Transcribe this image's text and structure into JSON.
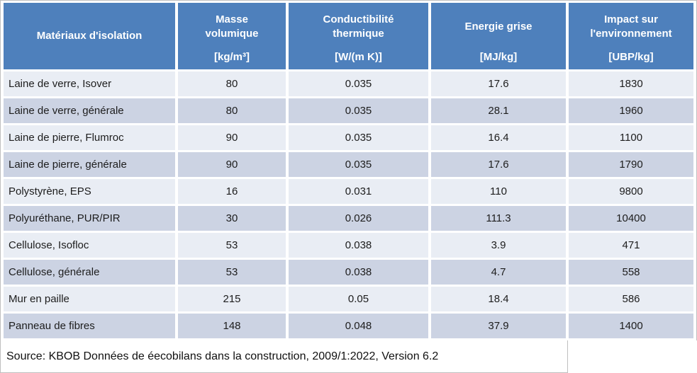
{
  "chart_data": {
    "type": "table",
    "columns": [
      "Matériaux d'isolation",
      "Masse volumique [kg/m³]",
      "Conductibilité thermique [W/(m K)]",
      "Energie grise [MJ/kg]",
      "Impact sur l'environnement [UBP/kg]"
    ],
    "rows": [
      [
        "Laine de verre, Isover",
        "80",
        "0.035",
        "17.6",
        "1830"
      ],
      [
        "Laine de verre, générale",
        "80",
        "0.035",
        "28.1",
        "1960"
      ],
      [
        "Laine de pierre, Flumroc",
        "90",
        "0.035",
        "16.4",
        "1100"
      ],
      [
        "Laine de pierre,  générale",
        "90",
        "0.035",
        "17.6",
        "1790"
      ],
      [
        "Polystyrène, EPS",
        "16",
        "0.031",
        "110",
        "9800"
      ],
      [
        "Polyuréthane, PUR/PIR",
        "30",
        "0.026",
        "111.3",
        "10400"
      ],
      [
        "Cellulose, Isofloc",
        "53",
        "0.038",
        "3.9",
        "471"
      ],
      [
        "Cellulose, générale",
        "53",
        "0.038",
        "4.7",
        "558"
      ],
      [
        "Mur en paille",
        "215",
        "0.05",
        "18.4",
        "586"
      ],
      [
        "Panneau de fibres",
        "148",
        "0.048",
        "37.9",
        "1400"
      ]
    ],
    "source": "Source: KBOB Données de éecobilans dans la construction, 2009/1:2022, Version 6.2",
    "layout_hints": {
      "banded_rows": true,
      "header_position": "top"
    }
  },
  "header": {
    "col1": {
      "title": "Matériaux d'isolation"
    },
    "col2": {
      "title": "Masse volumique",
      "unit": "[kg/m³]"
    },
    "col3": {
      "title": "Conductibilité thermique",
      "unit": "[W/(m K)]"
    },
    "col4": {
      "title": "Energie grise",
      "unit": "[MJ/kg]"
    },
    "col5": {
      "title": "Impact sur l'environnement",
      "unit": "[UBP/kg]"
    }
  },
  "footer": {
    "source": "Source: KBOB Données de éecobilans dans la construction, 2009/1:2022, Version 6.2"
  },
  "colors": {
    "header_bg": "#4e80bc",
    "header_text": "#ffffff",
    "row_light": "#e9edf4",
    "row_dark": "#ccd3e3",
    "grid": "#ffffff",
    "outer_border": "#bfbfbf",
    "body_text": "#1d1d1d"
  }
}
